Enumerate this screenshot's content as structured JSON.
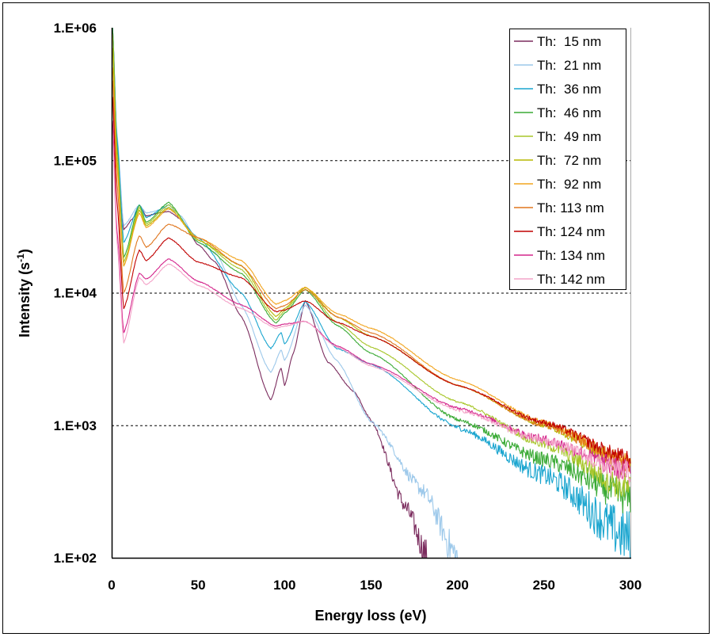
{
  "chart_data": {
    "type": "line",
    "title": "",
    "xlabel": "Energy loss (eV)",
    "ylabel": "Intensity  (s",
    "ylabel_superscript": "-1",
    "ylabel_close": ")",
    "xlim": [
      0,
      300
    ],
    "ylim": [
      100,
      1000000
    ],
    "y_scale": "log",
    "grid": "horizontal dashed at decades",
    "legend_position": "top-right",
    "x_ticks": [
      "0",
      "50",
      "100",
      "150",
      "200",
      "250",
      "300"
    ],
    "x_tick_values": [
      0,
      50,
      100,
      150,
      200,
      250,
      300
    ],
    "y_ticks": [
      "1.E+06",
      "1.E+05",
      "1.E+04",
      "1.E+03",
      "1.E+02"
    ],
    "y_tick_values": [
      1000000,
      100000,
      10000,
      1000,
      100
    ],
    "series": [
      {
        "name": "Th:  15 nm",
        "color": "#7b2c5e",
        "points": [
          [
            0.5,
            1000000.0
          ],
          [
            3,
            150000.0
          ],
          [
            7,
            30000.0
          ],
          [
            12,
            36000.0
          ],
          [
            16,
            46000.0
          ],
          [
            20,
            38000.0
          ],
          [
            27,
            40000.0
          ],
          [
            33,
            41000.0
          ],
          [
            40,
            36000.0
          ],
          [
            50,
            23000.0
          ],
          [
            60,
            17000.0
          ],
          [
            75,
            6600.0
          ],
          [
            92,
            1550.0
          ],
          [
            98,
            2700.0
          ],
          [
            100,
            2000.0
          ],
          [
            105,
            3500.0
          ],
          [
            112,
            8700.0
          ],
          [
            125,
            3000.0
          ],
          [
            140,
            1800.0
          ],
          [
            150,
            1100.0
          ],
          [
            170,
            240
          ],
          [
            183,
            100
          ]
        ]
      },
      {
        "name": "Th:  21 nm",
        "color": "#9cc8ea",
        "points": [
          [
            0.5,
            1000000.0
          ],
          [
            3,
            160000.0
          ],
          [
            7,
            32000.0
          ],
          [
            16,
            46000.0
          ],
          [
            20,
            40000.0
          ],
          [
            33,
            44000.0
          ],
          [
            40,
            38000.0
          ],
          [
            50,
            24000.0
          ],
          [
            60,
            20000.0
          ],
          [
            75,
            8000.0
          ],
          [
            92,
            2500.0
          ],
          [
            98,
            3700.0
          ],
          [
            100,
            3100.0
          ],
          [
            112,
            8100.0
          ],
          [
            130,
            3100.0
          ],
          [
            150,
            1070.0
          ],
          [
            180,
            320
          ],
          [
            200,
            100
          ]
        ]
      },
      {
        "name": "Th:  36 nm",
        "color": "#1aa5cf",
        "points": [
          [
            0.5,
            1000000.0
          ],
          [
            3,
            150000.0
          ],
          [
            7,
            24000.0
          ],
          [
            16,
            46000.0
          ],
          [
            20,
            37000.0
          ],
          [
            33,
            46000.0
          ],
          [
            50,
            26000.0
          ],
          [
            75,
            10000.0
          ],
          [
            92,
            3800.0
          ],
          [
            98,
            5000.0
          ],
          [
            100,
            4100.0
          ],
          [
            112,
            8600.0
          ],
          [
            130,
            3800.0
          ],
          [
            150,
            2900.0
          ],
          [
            200,
            960
          ],
          [
            250,
            420
          ],
          [
            300,
            140
          ]
        ]
      },
      {
        "name": "Th:  46 nm",
        "color": "#3aaa35",
        "points": [
          [
            0.5,
            1000000.0
          ],
          [
            3,
            130000.0
          ],
          [
            7,
            18500.0
          ],
          [
            16,
            46000.0
          ],
          [
            20,
            34000.0
          ],
          [
            33,
            48000.0
          ],
          [
            50,
            24000.0
          ],
          [
            75,
            14000.0
          ],
          [
            95,
            5900.0
          ],
          [
            100,
            7000.0
          ],
          [
            112,
            10600.0
          ],
          [
            130,
            5700.0
          ],
          [
            150,
            3500.0
          ],
          [
            200,
            1100.0
          ],
          [
            250,
            550
          ],
          [
            300,
            280
          ]
        ]
      },
      {
        "name": "Th:  49 nm",
        "color": "#a8c62a",
        "points": [
          [
            0.5,
            900000.0
          ],
          [
            3,
            120000.0
          ],
          [
            7,
            17000.0
          ],
          [
            16,
            44000.0
          ],
          [
            20,
            33000.0
          ],
          [
            33,
            46000.0
          ],
          [
            50,
            25000.0
          ],
          [
            75,
            15000.0
          ],
          [
            95,
            6200.0
          ],
          [
            100,
            7300.0
          ],
          [
            112,
            11000.0
          ],
          [
            130,
            6000.0
          ],
          [
            150,
            3900.0
          ],
          [
            200,
            1500.0
          ],
          [
            250,
            720
          ],
          [
            300,
            330
          ]
        ]
      },
      {
        "name": "Th:  72 nm",
        "color": "#b5b800",
        "points": [
          [
            0.5,
            700000.0
          ],
          [
            3,
            100000.0
          ],
          [
            7,
            16000.0
          ],
          [
            16,
            42000.0
          ],
          [
            20,
            32000.0
          ],
          [
            33,
            44000.0
          ],
          [
            50,
            25000.0
          ],
          [
            75,
            16000.0
          ],
          [
            95,
            6600.0
          ],
          [
            100,
            7600.0
          ],
          [
            112,
            11000.0
          ],
          [
            130,
            6600.0
          ],
          [
            150,
            4700.0
          ],
          [
            200,
            2000.0
          ],
          [
            250,
            1000.0
          ],
          [
            300,
            480
          ]
        ]
      },
      {
        "name": "Th:  92 nm",
        "color": "#f2a51f",
        "points": [
          [
            0.5,
            500000.0
          ],
          [
            3,
            90000.0
          ],
          [
            7,
            16000.0
          ],
          [
            16,
            40000.0
          ],
          [
            20,
            31000.0
          ],
          [
            33,
            43000.0
          ],
          [
            50,
            26000.0
          ],
          [
            75,
            17500.0
          ],
          [
            95,
            8200.0
          ],
          [
            100,
            8700.0
          ],
          [
            112,
            11000.0
          ],
          [
            130,
            7000.0
          ],
          [
            150,
            5400.0
          ],
          [
            200,
            2200.0
          ],
          [
            250,
            1050.0
          ],
          [
            300,
            515
          ]
        ]
      },
      {
        "name": "Th: 113 nm",
        "color": "#e0761e",
        "points": [
          [
            0.5,
            400000.0
          ],
          [
            3,
            70000.0
          ],
          [
            7,
            10000.0
          ],
          [
            16,
            27000.0
          ],
          [
            20,
            22000.0
          ],
          [
            33,
            33000.0
          ],
          [
            50,
            26000.0
          ],
          [
            75,
            16000.0
          ],
          [
            95,
            7600.0
          ],
          [
            100,
            8000.0
          ],
          [
            112,
            10600.0
          ],
          [
            130,
            6600.0
          ],
          [
            150,
            5000.0
          ],
          [
            200,
            2000.0
          ],
          [
            250,
            1000.0
          ],
          [
            300,
            515
          ]
        ]
      },
      {
        "name": "Th: 124 nm",
        "color": "#c00000",
        "points": [
          [
            0.5,
            300000.0
          ],
          [
            3,
            50000.0
          ],
          [
            7,
            7600.0
          ],
          [
            16,
            21000.0
          ],
          [
            20,
            17500.0
          ],
          [
            33,
            26000.0
          ],
          [
            50,
            17000.0
          ],
          [
            75,
            13000.0
          ],
          [
            95,
            7200.0
          ],
          [
            100,
            7400.0
          ],
          [
            112,
            8700.0
          ],
          [
            130,
            6000.0
          ],
          [
            150,
            4700.0
          ],
          [
            200,
            2000.0
          ],
          [
            250,
            1050.0
          ],
          [
            300,
            550
          ]
        ]
      },
      {
        "name": "Th: 134 nm",
        "color": "#d4268c",
        "points": [
          [
            0.5,
            200000.0
          ],
          [
            3,
            30000.0
          ],
          [
            7,
            5000.0
          ],
          [
            16,
            14000.0
          ],
          [
            20,
            12700.0
          ],
          [
            33,
            18000.0
          ],
          [
            50,
            12200.0
          ],
          [
            75,
            8100.0
          ],
          [
            95,
            5600.0
          ],
          [
            100,
            5800.0
          ],
          [
            112,
            6100.0
          ],
          [
            130,
            4000.0
          ],
          [
            150,
            2900.0
          ],
          [
            200,
            1350.0
          ],
          [
            250,
            780
          ],
          [
            300,
            450
          ]
        ]
      },
      {
        "name": "Th: 142 nm",
        "color": "#f4a3c8",
        "points": [
          [
            0.5,
            150000.0
          ],
          [
            3,
            25000.0
          ],
          [
            7,
            4200.0
          ],
          [
            16,
            13000.0
          ],
          [
            20,
            11500.0
          ],
          [
            33,
            16500.0
          ],
          [
            50,
            11400.0
          ],
          [
            75,
            7600.0
          ],
          [
            95,
            5400.0
          ],
          [
            100,
            5600.0
          ],
          [
            112,
            6100.0
          ],
          [
            130,
            3900.0
          ],
          [
            150,
            2800.0
          ],
          [
            200,
            1300.0
          ],
          [
            250,
            760
          ],
          [
            300,
            430
          ]
        ]
      }
    ]
  }
}
